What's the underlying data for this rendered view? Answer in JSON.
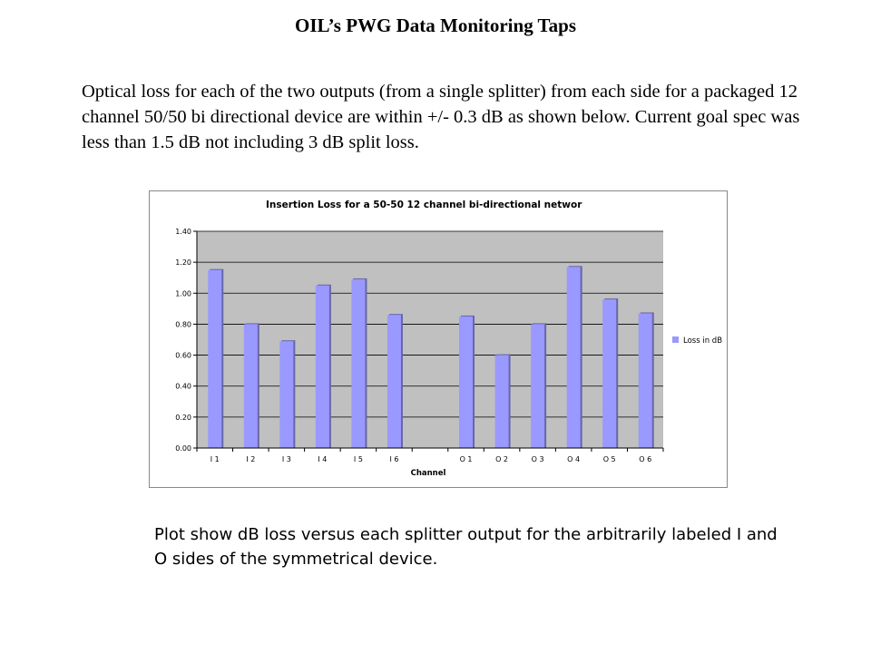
{
  "slide": {
    "title": "OIL’s PWG Data Monitoring Taps",
    "intro": "Optical loss for each of the two outputs (from a single splitter) from each side for a packaged 12 channel 50/50 bi directional device are within +/- 0.3 dB as shown below. Current goal spec was less than 1.5 dB not including 3 dB split loss.",
    "caption": "Plot show dB loss versus each splitter output for the arbitrarily labeled I and O sides of the symmetrical device."
  },
  "chart_data": {
    "type": "bar",
    "title": "Insertion Loss for a 50-50 12 channel bi-directional networ",
    "xlabel": "Channel",
    "ylabel": "",
    "ylim": [
      0,
      1.4
    ],
    "yticks": [
      "0.00",
      "0.20",
      "0.40",
      "0.60",
      "0.80",
      "1.00",
      "1.20",
      "1.40"
    ],
    "grid": true,
    "legend_position": "right",
    "categories": [
      "I 1",
      "I 2",
      "I 3",
      "I 4",
      "I 5",
      "I 6",
      "",
      "O 1",
      "O 2",
      "O 3",
      "O 4",
      "O 5",
      "O 6"
    ],
    "series": [
      {
        "name": "Loss in dB",
        "values": [
          1.15,
          0.8,
          0.69,
          1.05,
          1.09,
          0.86,
          null,
          0.85,
          0.6,
          0.8,
          1.17,
          0.96,
          0.87
        ]
      }
    ],
    "colors": {
      "bar": "#9999ff",
      "bar_shadow": "#6666aa",
      "plot_bg": "#c0c0c0",
      "grid": "#000000"
    }
  }
}
